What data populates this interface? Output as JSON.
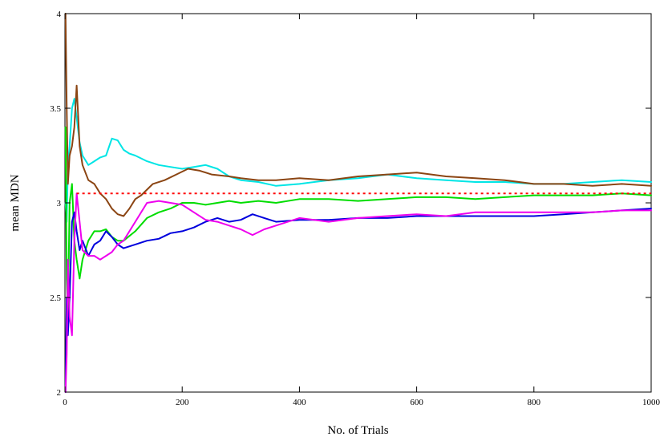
{
  "chart_data": {
    "type": "line",
    "title": "",
    "xlabel": "No. of Trials",
    "ylabel": "mean MDN",
    "xlim": [
      0,
      1000
    ],
    "ylim": [
      2,
      4
    ],
    "xticks": [
      0,
      200,
      400,
      600,
      800,
      1000
    ],
    "yticks": [
      2,
      2.5,
      3,
      3.5,
      4
    ],
    "xtick_labels": [
      "0",
      "200",
      "400",
      "600",
      "800",
      "1000"
    ],
    "ytick_labels": [
      "2",
      "2.5",
      "3",
      "3.5",
      "4"
    ],
    "grid": false,
    "legend": "none",
    "reference_line": {
      "y": 3.05,
      "color": "#ff0000",
      "style": "dotted"
    },
    "series": [
      {
        "color": "#00e5e5",
        "x": [
          1,
          3,
          5,
          8,
          12,
          16,
          20,
          25,
          30,
          40,
          50,
          60,
          70,
          80,
          90,
          100,
          110,
          120,
          140,
          160,
          180,
          200,
          220,
          240,
          260,
          280,
          300,
          330,
          360,
          400,
          450,
          500,
          550,
          600,
          650,
          700,
          750,
          800,
          850,
          900,
          950,
          1000
        ],
        "y": [
          3.0,
          2.9,
          3.2,
          3.3,
          3.5,
          3.55,
          3.45,
          3.32,
          3.25,
          3.2,
          3.22,
          3.24,
          3.25,
          3.34,
          3.33,
          3.28,
          3.26,
          3.25,
          3.22,
          3.2,
          3.19,
          3.18,
          3.19,
          3.2,
          3.18,
          3.14,
          3.12,
          3.11,
          3.09,
          3.1,
          3.12,
          3.13,
          3.15,
          3.13,
          3.12,
          3.11,
          3.11,
          3.1,
          3.1,
          3.11,
          3.12,
          3.11
        ]
      },
      {
        "color": "#8b4513",
        "x": [
          1,
          3,
          5,
          8,
          12,
          16,
          20,
          25,
          30,
          40,
          50,
          60,
          70,
          80,
          90,
          100,
          110,
          120,
          130,
          150,
          170,
          190,
          210,
          230,
          250,
          280,
          300,
          330,
          360,
          400,
          450,
          500,
          550,
          600,
          650,
          700,
          750,
          800,
          850,
          900,
          950,
          1000
        ],
        "y": [
          4.0,
          3.5,
          3.1,
          3.25,
          3.3,
          3.4,
          3.62,
          3.3,
          3.2,
          3.12,
          3.1,
          3.05,
          3.02,
          2.97,
          2.94,
          2.93,
          2.97,
          3.02,
          3.04,
          3.1,
          3.12,
          3.15,
          3.18,
          3.17,
          3.15,
          3.14,
          3.13,
          3.12,
          3.12,
          3.13,
          3.12,
          3.14,
          3.15,
          3.16,
          3.14,
          3.13,
          3.12,
          3.1,
          3.1,
          3.09,
          3.1,
          3.09
        ]
      },
      {
        "color": "#00dd00",
        "x": [
          1,
          3,
          5,
          8,
          12,
          16,
          20,
          25,
          30,
          40,
          50,
          60,
          70,
          80,
          90,
          100,
          120,
          140,
          160,
          180,
          200,
          220,
          240,
          260,
          280,
          300,
          330,
          360,
          400,
          450,
          500,
          550,
          600,
          650,
          700,
          750,
          800,
          850,
          900,
          950,
          1000
        ],
        "y": [
          3.4,
          2.6,
          2.4,
          3.0,
          3.1,
          2.8,
          2.7,
          2.6,
          2.7,
          2.8,
          2.85,
          2.85,
          2.86,
          2.82,
          2.8,
          2.8,
          2.85,
          2.92,
          2.95,
          2.97,
          3.0,
          3.0,
          2.99,
          3.0,
          3.01,
          3.0,
          3.01,
          3.0,
          3.02,
          3.02,
          3.01,
          3.02,
          3.03,
          3.03,
          3.02,
          3.03,
          3.04,
          3.04,
          3.04,
          3.05,
          3.04
        ]
      },
      {
        "color": "#0000dd",
        "x": [
          1,
          3,
          5,
          8,
          12,
          16,
          20,
          25,
          30,
          40,
          50,
          60,
          70,
          80,
          90,
          100,
          120,
          140,
          160,
          180,
          200,
          220,
          240,
          260,
          280,
          300,
          320,
          340,
          360,
          400,
          450,
          500,
          550,
          600,
          650,
          700,
          750,
          800,
          850,
          900,
          950,
          1000
        ],
        "y": [
          2.0,
          2.5,
          2.3,
          2.5,
          2.9,
          2.95,
          2.85,
          2.75,
          2.8,
          2.72,
          2.78,
          2.8,
          2.85,
          2.82,
          2.78,
          2.76,
          2.78,
          2.8,
          2.81,
          2.84,
          2.85,
          2.87,
          2.9,
          2.92,
          2.9,
          2.91,
          2.94,
          2.92,
          2.9,
          2.91,
          2.91,
          2.92,
          2.92,
          2.93,
          2.93,
          2.93,
          2.93,
          2.93,
          2.94,
          2.95,
          2.96,
          2.97
        ]
      },
      {
        "color": "#ee00ee",
        "x": [
          1,
          3,
          5,
          8,
          12,
          16,
          20,
          25,
          30,
          40,
          50,
          60,
          70,
          80,
          90,
          100,
          120,
          140,
          160,
          180,
          200,
          220,
          240,
          260,
          280,
          300,
          320,
          340,
          360,
          400,
          450,
          500,
          550,
          600,
          650,
          700,
          750,
          800,
          850,
          900,
          950,
          1000
        ],
        "y": [
          2.0,
          2.2,
          2.7,
          2.4,
          2.3,
          2.8,
          3.05,
          2.9,
          2.75,
          2.72,
          2.72,
          2.7,
          2.72,
          2.74,
          2.78,
          2.8,
          2.9,
          3.0,
          3.01,
          3.0,
          2.99,
          2.95,
          2.91,
          2.9,
          2.88,
          2.86,
          2.83,
          2.86,
          2.88,
          2.92,
          2.9,
          2.92,
          2.93,
          2.94,
          2.93,
          2.95,
          2.95,
          2.95,
          2.95,
          2.95,
          2.96,
          2.96
        ]
      }
    ]
  }
}
